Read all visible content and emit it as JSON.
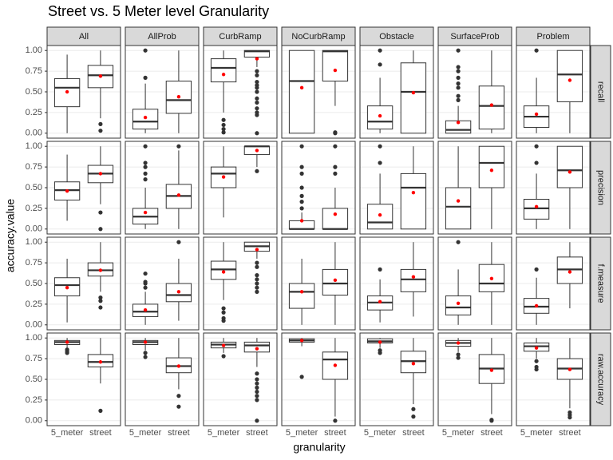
{
  "chart_data": {
    "type": "box",
    "title": "Street vs. 5 Meter level Granularity",
    "x_label": "granularity",
    "y_label": "accuracy.value",
    "categories": [
      "5_meter",
      "street"
    ],
    "columns": [
      "All",
      "AllProb",
      "CurbRamp",
      "NoCurbRamp",
      "Obstacle",
      "SurfaceProb",
      "Problem"
    ],
    "rows": [
      "recall",
      "precision",
      "f.measure",
      "raw.accuracy"
    ],
    "ylim": [
      -0.06,
      1.06
    ],
    "yticks": [
      {
        "value": 0,
        "label": "0.00"
      },
      {
        "value": 0.25,
        "label": "0.25"
      },
      {
        "value": 0.5,
        "label": "0.50"
      },
      {
        "value": 0.75,
        "label": "0.75"
      },
      {
        "value": 1,
        "label": "1.00"
      }
    ],
    "grid": true,
    "box_color": "#333333",
    "mean_color": "#ff0000",
    "outlier_color": "#333333",
    "panels": [
      [
        [
          {
            "low": 0,
            "q1": 0.32,
            "median": 0.55,
            "q3": 0.66,
            "high": 0.95,
            "mean": 0.5,
            "outliers": []
          },
          {
            "low": 0.18,
            "q1": 0.55,
            "median": 0.7,
            "q3": 0.82,
            "high": 1,
            "mean": 0.69,
            "outliers": [
              0.11,
              0.03
            ]
          }
        ],
        [
          {
            "low": 0,
            "q1": 0.05,
            "median": 0.14,
            "q3": 0.29,
            "high": 0.6,
            "mean": 0.19,
            "outliers": [
              0.67,
              1
            ]
          },
          {
            "low": 0,
            "q1": 0.24,
            "median": 0.4,
            "q3": 0.63,
            "high": 1,
            "mean": 0.44,
            "outliers": []
          }
        ],
        [
          {
            "low": 0.25,
            "q1": 0.62,
            "median": 0.79,
            "q3": 0.9,
            "high": 1,
            "mean": 0.71,
            "outliers": [
              0.16,
              0.1,
              0.05,
              0.01
            ]
          },
          {
            "low": 0.8,
            "q1": 0.92,
            "median": 0.99,
            "q3": 1,
            "high": 1,
            "mean": 0.9,
            "outliers": [
              0.75,
              0.7,
              0.62,
              0.58,
              0.55,
              0.5,
              0.42,
              0.37,
              0.3,
              0.25,
              0.22,
              0
            ]
          }
        ],
        [
          {
            "low": 0,
            "q1": 0,
            "median": 0.63,
            "q3": 1,
            "high": 1,
            "mean": 0.55,
            "outliers": []
          },
          {
            "low": 0.33,
            "q1": 0.63,
            "median": 0.99,
            "q3": 1,
            "high": 1,
            "mean": 0.76,
            "outliers": [
              0,
              0.01
            ]
          }
        ],
        [
          {
            "low": 0,
            "q1": 0.05,
            "median": 0.14,
            "q3": 0.33,
            "high": 0.67,
            "mean": 0.21,
            "outliers": [
              0.83,
              1
            ]
          },
          {
            "low": 0,
            "q1": 0,
            "median": 0.5,
            "q3": 0.85,
            "high": 1,
            "mean": 0.49,
            "outliers": []
          }
        ],
        [
          {
            "low": 0,
            "q1": 0,
            "median": 0.04,
            "q3": 0.15,
            "high": 0.33,
            "mean": 0.13,
            "outliers": [
              0.4,
              0.45,
              0.55,
              0.6,
              0.67,
              0.75,
              0.8,
              1
            ]
          },
          {
            "low": 0,
            "q1": 0.05,
            "median": 0.33,
            "q3": 0.57,
            "high": 1,
            "mean": 0.34,
            "outliers": []
          }
        ],
        [
          {
            "low": 0,
            "q1": 0.07,
            "median": 0.2,
            "q3": 0.33,
            "high": 0.67,
            "mean": 0.23,
            "outliers": [
              1
            ]
          },
          {
            "low": 0,
            "q1": 0.38,
            "median": 0.71,
            "q3": 1,
            "high": 1,
            "mean": 0.64,
            "outliers": []
          }
        ]
      ],
      [
        [
          {
            "low": 0.1,
            "q1": 0.35,
            "median": 0.47,
            "q3": 0.57,
            "high": 0.9,
            "mean": 0.46,
            "outliers": []
          },
          {
            "low": 0.3,
            "q1": 0.56,
            "median": 0.67,
            "q3": 0.77,
            "high": 1,
            "mean": 0.67,
            "outliers": [
              0.2,
              0
            ]
          }
        ],
        [
          {
            "low": 0,
            "q1": 0.06,
            "median": 0.15,
            "q3": 0.25,
            "high": 0.5,
            "mean": 0.2,
            "outliers": [
              0.6,
              0.67,
              0.75,
              0.8,
              1
            ]
          },
          {
            "low": 0,
            "q1": 0.25,
            "median": 0.4,
            "q3": 0.54,
            "high": 0.95,
            "mean": 0.41,
            "outliers": [
              1
            ]
          }
        ],
        [
          {
            "low": 0.14,
            "q1": 0.5,
            "median": 0.67,
            "q3": 0.75,
            "high": 1,
            "mean": 0.63,
            "outliers": []
          },
          {
            "low": 0.75,
            "q1": 0.9,
            "median": 1,
            "q3": 1,
            "high": 1,
            "mean": 0.95,
            "outliers": [
              0.7
            ]
          }
        ],
        [
          {
            "low": 0,
            "q1": 0,
            "median": 0,
            "q3": 0.1,
            "high": 0.2,
            "mean": 0.1,
            "outliers": [
              0.25,
              0.33,
              0.4,
              0.5,
              0.67,
              0.75,
              1
            ]
          },
          {
            "low": 0,
            "q1": 0,
            "median": 0,
            "q3": 0.25,
            "high": 0.5,
            "mean": 0.18,
            "outliers": [
              0.67,
              0.75,
              1
            ]
          }
        ],
        [
          {
            "low": 0,
            "q1": 0,
            "median": 0.08,
            "q3": 0.3,
            "high": 0.67,
            "mean": 0.17,
            "outliers": [
              0.8,
              1
            ]
          },
          {
            "low": 0,
            "q1": 0,
            "median": 0.5,
            "q3": 0.67,
            "high": 1,
            "mean": 0.44,
            "outliers": []
          }
        ],
        [
          {
            "low": 0,
            "q1": 0,
            "median": 0.27,
            "q3": 0.5,
            "high": 1,
            "mean": 0.34,
            "outliers": []
          },
          {
            "low": 0,
            "q1": 0.5,
            "median": 0.8,
            "q3": 1,
            "high": 1,
            "mean": 0.71,
            "outliers": []
          }
        ],
        [
          {
            "low": 0,
            "q1": 0.12,
            "median": 0.25,
            "q3": 0.36,
            "high": 0.67,
            "mean": 0.27,
            "outliers": [
              0.8,
              1
            ]
          },
          {
            "low": 0,
            "q1": 0.5,
            "median": 0.71,
            "q3": 1,
            "high": 1,
            "mean": 0.69,
            "outliers": []
          }
        ]
      ],
      [
        [
          {
            "low": 0.03,
            "q1": 0.35,
            "median": 0.48,
            "q3": 0.57,
            "high": 0.8,
            "mean": 0.45,
            "outliers": []
          },
          {
            "low": 0.4,
            "q1": 0.59,
            "median": 0.66,
            "q3": 0.75,
            "high": 1,
            "mean": 0.66,
            "outliers": [
              0.33,
              0.29,
              0.21
            ]
          }
        ],
        [
          {
            "low": 0,
            "q1": 0.1,
            "median": 0.16,
            "q3": 0.25,
            "high": 0.4,
            "mean": 0.18,
            "outliers": [
              0.45,
              0.5,
              0.52,
              0.62
            ]
          },
          {
            "low": 0.05,
            "q1": 0.28,
            "median": 0.36,
            "q3": 0.5,
            "high": 0.8,
            "mean": 0.4,
            "outliers": [
              1
            ]
          }
        ],
        [
          {
            "low": 0.3,
            "q1": 0.55,
            "median": 0.67,
            "q3": 0.77,
            "high": 1,
            "mean": 0.64,
            "outliers": [
              0.2,
              0.15,
              0.08,
              0.05
            ]
          },
          {
            "low": 0.8,
            "q1": 0.89,
            "median": 0.95,
            "q3": 1,
            "high": 1,
            "mean": 0.91,
            "outliers": [
              0.75,
              0.7,
              0.6,
              0.55,
              0.5,
              0.45,
              0.4
            ]
          }
        ],
        [
          {
            "low": 0,
            "q1": 0.2,
            "median": 0.4,
            "q3": 0.5,
            "high": 0.8,
            "mean": 0.4,
            "outliers": []
          },
          {
            "low": 0,
            "q1": 0.36,
            "median": 0.5,
            "q3": 0.67,
            "high": 1,
            "mean": 0.54,
            "outliers": []
          }
        ],
        [
          {
            "low": 0.03,
            "q1": 0.18,
            "median": 0.27,
            "q3": 0.35,
            "high": 0.55,
            "mean": 0.28,
            "outliers": [
              0.67
            ]
          },
          {
            "low": 0.1,
            "q1": 0.4,
            "median": 0.55,
            "q3": 0.67,
            "high": 1,
            "mean": 0.58,
            "outliers": []
          }
        ],
        [
          {
            "low": 0,
            "q1": 0.12,
            "median": 0.21,
            "q3": 0.35,
            "high": 0.67,
            "mean": 0.26,
            "outliers": [
              1
            ]
          },
          {
            "low": 0,
            "q1": 0.4,
            "median": 0.5,
            "q3": 0.73,
            "high": 1,
            "mean": 0.56,
            "outliers": []
          }
        ],
        [
          {
            "low": 0,
            "q1": 0.14,
            "median": 0.22,
            "q3": 0.32,
            "high": 0.57,
            "mean": 0.23,
            "outliers": [
              0.67
            ]
          },
          {
            "low": 0.2,
            "q1": 0.5,
            "median": 0.67,
            "q3": 0.82,
            "high": 1,
            "mean": 0.64,
            "outliers": []
          }
        ]
      ],
      [
        [
          {
            "low": 0.88,
            "q1": 0.92,
            "median": 0.95,
            "q3": 0.97,
            "high": 1,
            "mean": 0.95,
            "outliers": [
              0.86,
              0.84,
              0.82
            ]
          },
          {
            "low": 0.45,
            "q1": 0.65,
            "median": 0.71,
            "q3": 0.8,
            "high": 1,
            "mean": 0.71,
            "outliers": [
              0.12
            ]
          }
        ],
        [
          {
            "low": 0.85,
            "q1": 0.92,
            "median": 0.95,
            "q3": 0.97,
            "high": 1,
            "mean": 0.95,
            "outliers": [
              0.82,
              0.77
            ]
          },
          {
            "low": 0.38,
            "q1": 0.58,
            "median": 0.66,
            "q3": 0.76,
            "high": 1,
            "mean": 0.66,
            "outliers": [
              0.3,
              0.17
            ]
          }
        ],
        [
          {
            "low": 0.82,
            "q1": 0.88,
            "median": 0.92,
            "q3": 0.95,
            "high": 1,
            "mean": 0.91,
            "outliers": [
              0.78
            ]
          },
          {
            "low": 0.65,
            "q1": 0.83,
            "median": 0.91,
            "q3": 0.95,
            "high": 1,
            "mean": 0.87,
            "outliers": [
              0.57,
              0.5,
              0.45,
              0.4,
              0.35,
              0.3,
              0.25,
              0
            ]
          }
        ],
        [
          {
            "low": 0.9,
            "q1": 0.95,
            "median": 0.97,
            "q3": 0.99,
            "high": 1,
            "mean": 0.97,
            "outliers": [
              0.53
            ]
          },
          {
            "low": 0.05,
            "q1": 0.5,
            "median": 0.74,
            "q3": 0.83,
            "high": 1,
            "mean": 0.67,
            "outliers": [
              0
            ]
          }
        ],
        [
          {
            "low": 0.88,
            "q1": 0.94,
            "median": 0.96,
            "q3": 0.99,
            "high": 1,
            "mean": 0.95,
            "outliers": [
              0.85,
              0.82
            ]
          },
          {
            "low": 0.2,
            "q1": 0.58,
            "median": 0.72,
            "q3": 0.84,
            "high": 1,
            "mean": 0.69,
            "outliers": [
              0.14,
              0.05
            ]
          }
        ],
        [
          {
            "low": 0.83,
            "q1": 0.9,
            "median": 0.94,
            "q3": 0.97,
            "high": 1,
            "mean": 0.94,
            "outliers": [
              0.8,
              0.76
            ]
          },
          {
            "low": 0.08,
            "q1": 0.45,
            "median": 0.63,
            "q3": 0.8,
            "high": 1,
            "mean": 0.61,
            "outliers": [
              0,
              0.01
            ]
          }
        ],
        [
          {
            "low": 0.75,
            "q1": 0.84,
            "median": 0.9,
            "q3": 0.94,
            "high": 1,
            "mean": 0.88,
            "outliers": [
              0.72,
              0.65,
              0.62
            ]
          },
          {
            "low": 0.15,
            "q1": 0.5,
            "median": 0.63,
            "q3": 0.75,
            "high": 1,
            "mean": 0.62,
            "outliers": [
              0.1,
              0.07,
              0.04
            ]
          }
        ]
      ]
    ]
  }
}
